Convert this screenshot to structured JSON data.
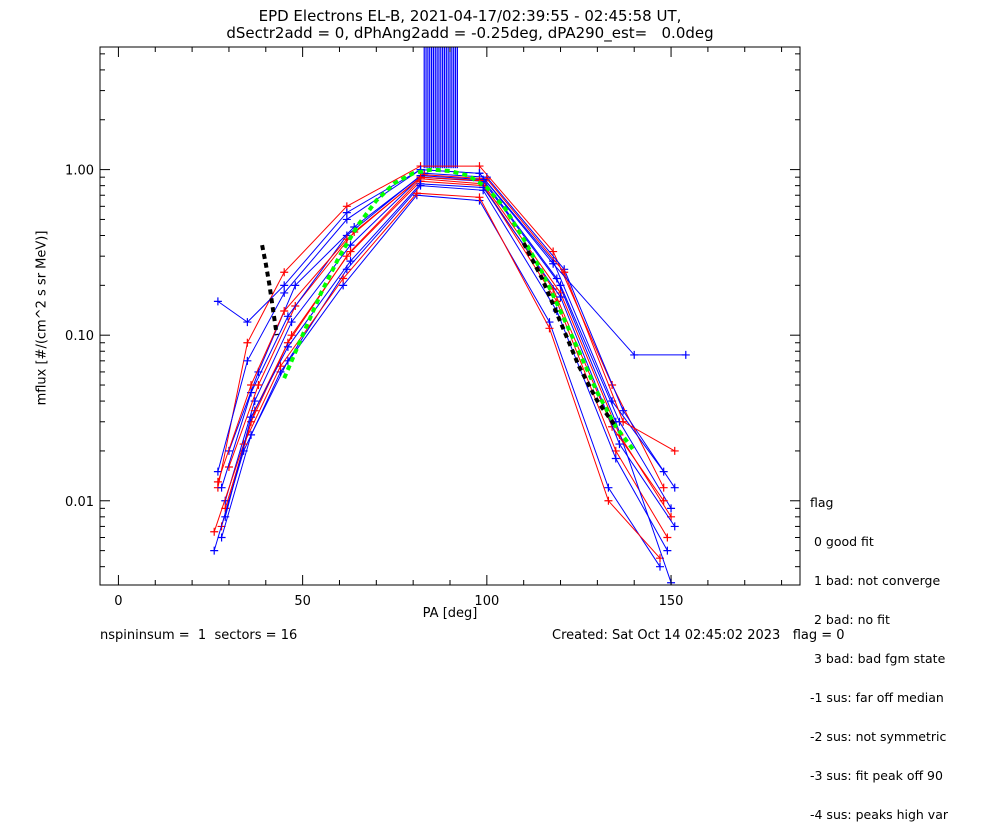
{
  "title_line1": "EPD Electrons EL-B, 2021-04-17/02:39:55 - 02:45:58 UT,",
  "title_line2": "dSectr2add = 0, dPhAng2add = -0.25deg, dPA290_est=   0.0deg",
  "footer": {
    "left": "nspininsum =  1  sectors = 16",
    "right": "Created: Sat Oct 14 02:45:02 2023   flag = 0"
  },
  "legend": {
    "title": "flag",
    "items": [
      " 0 good fit",
      " 1 bad: not converge",
      " 2 bad: no fit",
      " 3 bad: bad fgm state",
      "-1 sus: far off median",
      "-2 sus: not symmetric",
      "-3 sus: fit peak off 90",
      "-4 sus: peaks high var"
    ]
  },
  "colors": {
    "series_red": "#ff0000",
    "series_blue": "#0000ff",
    "fit_green": "#00ff00",
    "fit_black": "#000000"
  },
  "chart_data": {
    "type": "line",
    "title": "EPD Electrons EL-B, 2021-04-17/02:39:55 - 02:45:58 UT,",
    "subtitle": "dSectr2add = 0, dPhAng2add = -0.25deg, dPA290_est=   0.0deg",
    "xlabel": "PA [deg]",
    "ylabel": "mflux [#/(cm^2 s sr MeV)]",
    "xlim": [
      -5,
      185
    ],
    "ylim": [
      0.0031,
      5.5
    ],
    "yscale": "log",
    "x_ticks": [
      0,
      50,
      100,
      150
    ],
    "x_tick_labels": [
      "0",
      "50",
      "100",
      "150"
    ],
    "y_ticks": [
      0.01,
      0.1,
      1.0
    ],
    "y_tick_labels": [
      "0.01",
      "0.10",
      "1.00"
    ],
    "grid": false,
    "series": [
      {
        "color": "red",
        "x": [
          27,
          35,
          45,
          62,
          82,
          98,
          118,
          134,
          148
        ],
        "y": [
          0.012,
          0.09,
          0.24,
          0.6,
          1.05,
          1.05,
          0.32,
          0.05,
          0.012
        ]
      },
      {
        "color": "blue",
        "x": [
          27,
          35,
          45,
          62,
          82,
          98,
          118,
          134,
          148
        ],
        "y": [
          0.015,
          0.07,
          0.18,
          0.5,
          1.0,
          0.95,
          0.28,
          0.04,
          0.015
        ]
      },
      {
        "color": "red",
        "x": [
          28,
          36,
          46,
          62,
          82,
          99,
          119,
          135,
          149
        ],
        "y": [
          0.007,
          0.03,
          0.09,
          0.3,
          0.85,
          0.8,
          0.16,
          0.02,
          0.006
        ]
      },
      {
        "color": "blue",
        "x": [
          28,
          36,
          46,
          62,
          82,
          99,
          119,
          135,
          149
        ],
        "y": [
          0.006,
          0.025,
          0.07,
          0.25,
          0.8,
          0.75,
          0.14,
          0.018,
          0.005
        ]
      },
      {
        "color": "blue",
        "x": [
          29,
          37,
          47,
          63,
          82,
          99,
          120,
          136,
          150
        ],
        "y": [
          0.01,
          0.04,
          0.12,
          0.35,
          0.9,
          0.85,
          0.2,
          0.03,
          0.009
        ]
      },
      {
        "color": "red",
        "x": [
          29,
          37,
          47,
          63,
          82,
          99,
          120,
          136,
          150
        ],
        "y": [
          0.009,
          0.035,
          0.1,
          0.32,
          0.88,
          0.82,
          0.18,
          0.025,
          0.008
        ]
      },
      {
        "color": "blue",
        "x": [
          26,
          34,
          44,
          61,
          81,
          98,
          117,
          133,
          147
        ],
        "y": [
          0.005,
          0.02,
          0.06,
          0.2,
          0.7,
          0.65,
          0.12,
          0.012,
          0.004
        ]
      },
      {
        "color": "red",
        "x": [
          26,
          34,
          44,
          61,
          81,
          98,
          117,
          133,
          147
        ],
        "y": [
          0.0065,
          0.022,
          0.065,
          0.22,
          0.72,
          0.68,
          0.11,
          0.01,
          0.0045
        ]
      },
      {
        "color": "blue",
        "x": [
          30,
          38,
          48,
          64,
          83,
          100,
          121,
          137,
          151
        ],
        "y": [
          0.02,
          0.06,
          0.2,
          0.45,
          0.95,
          0.9,
          0.25,
          0.035,
          0.012
        ]
      },
      {
        "color": "red",
        "x": [
          30,
          38,
          48,
          64,
          83,
          100,
          121,
          137,
          151
        ],
        "y": [
          0.016,
          0.05,
          0.15,
          0.42,
          0.93,
          0.88,
          0.24,
          0.03,
          0.02
        ]
      },
      {
        "color": "blue",
        "x": [
          27,
          35,
          45,
          62,
          82,
          98,
          118,
          140,
          154
        ],
        "y": [
          0.16,
          0.12,
          0.2,
          0.55,
          1.0,
          0.95,
          0.27,
          0.076,
          0.076
        ]
      },
      {
        "color": "blue",
        "x": [
          28,
          36,
          46,
          62,
          82,
          99,
          119,
          135,
          150
        ],
        "y": [
          0.012,
          0.045,
          0.13,
          0.4,
          0.92,
          0.87,
          0.22,
          0.03,
          0.0032
        ]
      },
      {
        "color": "red",
        "x": [
          27,
          36,
          45,
          62,
          82,
          98,
          118,
          134,
          148
        ],
        "y": [
          0.013,
          0.05,
          0.14,
          0.38,
          0.9,
          0.86,
          0.19,
          0.028,
          0.01
        ]
      },
      {
        "color": "blue",
        "x": [
          29,
          36,
          46,
          63,
          82,
          99,
          120,
          136,
          151
        ],
        "y": [
          0.008,
          0.032,
          0.085,
          0.28,
          0.82,
          0.78,
          0.17,
          0.022,
          0.007
        ]
      }
    ],
    "vertical_bars": {
      "color": "blue",
      "x_range": [
        83,
        92
      ],
      "y_bottom": 1.02,
      "y_top": 5.5
    },
    "fit_curves": [
      {
        "name": "",
        "color": "green",
        "style": "dashed",
        "x": [
          45,
          50,
          55,
          60,
          65,
          70,
          75,
          80,
          85,
          90,
          95,
          100,
          105,
          110,
          115,
          120,
          125,
          130,
          135,
          140
        ],
        "y": [
          0.055,
          0.1,
          0.18,
          0.3,
          0.46,
          0.65,
          0.83,
          0.95,
          1.0,
          0.98,
          0.92,
          0.78,
          0.58,
          0.38,
          0.24,
          0.14,
          0.08,
          0.045,
          0.028,
          0.02
        ]
      },
      {
        "name": "",
        "color": "black",
        "style": "dashed",
        "x": [
          39,
          40,
          41,
          42,
          43
        ],
        "y": [
          0.35,
          0.27,
          0.2,
          0.14,
          0.1
        ]
      },
      {
        "name": "",
        "color": "black",
        "style": "dashed",
        "x": [
          110,
          115,
          120,
          125,
          130,
          135
        ],
        "y": [
          0.36,
          0.22,
          0.12,
          0.065,
          0.04,
          0.028
        ]
      }
    ]
  }
}
